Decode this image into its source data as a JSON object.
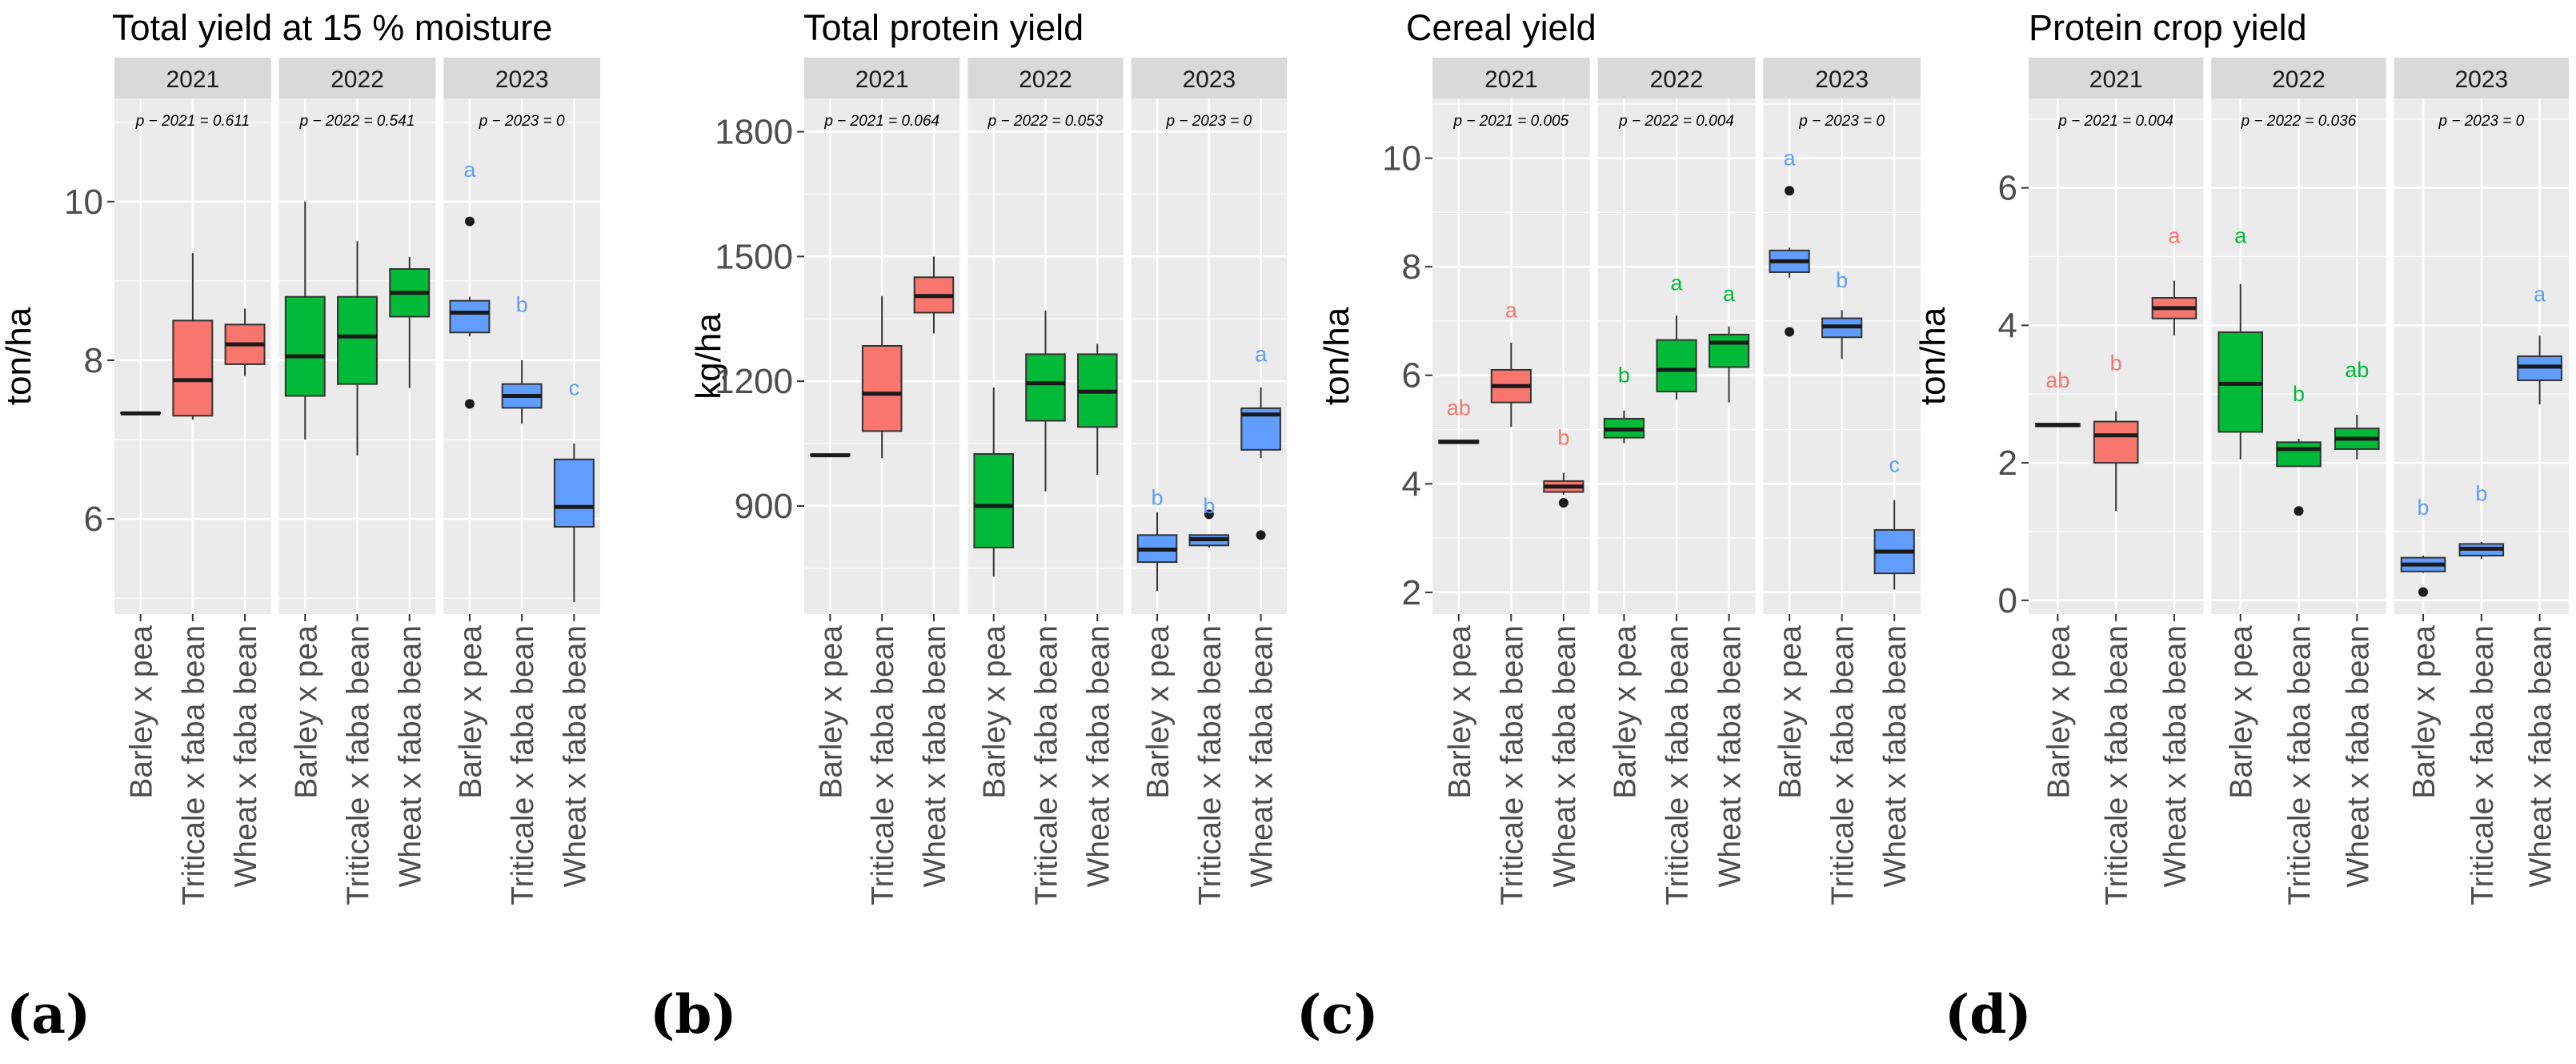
{
  "colors": {
    "red": "#F8766D",
    "green": "#00BA38",
    "blue": "#619CFF",
    "panel_bg": "#EBEBEB",
    "strip_bg": "#D9D9D9",
    "grid": "#FFFFFF"
  },
  "categories": [
    "Barley x pea",
    "Triticale x faba bean",
    "Wheat x faba bean"
  ],
  "years": [
    "2021",
    "2022",
    "2023"
  ],
  "chart_data": [
    {
      "id": "a",
      "type": "box",
      "panel_label": "(a)",
      "title": "Total yield at 15 % moisture",
      "ylabel": "ton/ha",
      "ylim": [
        4.8,
        11.3
      ],
      "yticks": [
        6,
        8,
        10
      ],
      "facets": [
        {
          "year": "2021",
          "ptext": "p − 2021 = 0.611",
          "boxes": [
            {
              "cat": 0,
              "color": "red",
              "min": 7.33,
              "q1": 7.33,
              "median": 7.33,
              "q3": 7.34,
              "max": 7.34,
              "outliers": [],
              "letter": ""
            },
            {
              "cat": 1,
              "color": "red",
              "min": 7.25,
              "q1": 7.3,
              "median": 7.75,
              "q3": 8.5,
              "max": 9.35,
              "outliers": [],
              "letter": ""
            },
            {
              "cat": 2,
              "color": "red",
              "min": 7.8,
              "q1": 7.95,
              "median": 8.2,
              "q3": 8.45,
              "max": 8.65,
              "outliers": [],
              "letter": ""
            }
          ]
        },
        {
          "year": "2022",
          "ptext": "p − 2022 = 0.541",
          "boxes": [
            {
              "cat": 0,
              "color": "green",
              "min": 7.0,
              "q1": 7.55,
              "median": 8.05,
              "q3": 8.8,
              "max": 10.0,
              "outliers": [],
              "letter": ""
            },
            {
              "cat": 1,
              "color": "green",
              "min": 6.8,
              "q1": 7.7,
              "median": 8.3,
              "q3": 8.8,
              "max": 9.5,
              "outliers": [],
              "letter": ""
            },
            {
              "cat": 2,
              "color": "green",
              "min": 7.65,
              "q1": 8.55,
              "median": 8.85,
              "q3": 9.15,
              "max": 9.3,
              "outliers": [],
              "letter": ""
            }
          ]
        },
        {
          "year": "2023",
          "ptext": "p − 2023 = 0",
          "boxes": [
            {
              "cat": 0,
              "color": "blue",
              "min": 8.3,
              "q1": 8.35,
              "median": 8.6,
              "q3": 8.75,
              "max": 8.8,
              "outliers": [
                9.75,
                7.45
              ],
              "letter": "a",
              "letter_y": 10.4
            },
            {
              "cat": 1,
              "color": "blue",
              "min": 7.2,
              "q1": 7.4,
              "median": 7.55,
              "q3": 7.7,
              "max": 8.0,
              "outliers": [],
              "letter": "b",
              "letter_y": 8.7
            },
            {
              "cat": 2,
              "color": "blue",
              "min": 4.95,
              "q1": 5.9,
              "median": 6.15,
              "q3": 6.75,
              "max": 6.95,
              "outliers": [],
              "letter": "c",
              "letter_y": 7.65
            }
          ]
        }
      ]
    },
    {
      "id": "b",
      "type": "box",
      "panel_label": "(b)",
      "title": "Total protein yield",
      "ylabel": "kg/ha",
      "ylim": [
        640,
        1880
      ],
      "yticks": [
        900,
        1200,
        1500,
        1800
      ],
      "facets": [
        {
          "year": "2021",
          "ptext": "p − 2021 = 0.064",
          "boxes": [
            {
              "cat": 0,
              "color": "red",
              "min": 1022,
              "q1": 1022,
              "median": 1022,
              "q3": 1024,
              "max": 1024,
              "outliers": [],
              "letter": ""
            },
            {
              "cat": 1,
              "color": "red",
              "min": 1015,
              "q1": 1080,
              "median": 1170,
              "q3": 1285,
              "max": 1405,
              "outliers": [],
              "letter": ""
            },
            {
              "cat": 2,
              "color": "red",
              "min": 1315,
              "q1": 1365,
              "median": 1405,
              "q3": 1450,
              "max": 1500,
              "outliers": [],
              "letter": ""
            }
          ]
        },
        {
          "year": "2022",
          "ptext": "p − 2022 = 0.053",
          "boxes": [
            {
              "cat": 0,
              "color": "green",
              "min": 730,
              "q1": 800,
              "median": 900,
              "q3": 1025,
              "max": 1185,
              "outliers": [],
              "letter": ""
            },
            {
              "cat": 1,
              "color": "green",
              "min": 935,
              "q1": 1105,
              "median": 1195,
              "q3": 1265,
              "max": 1370,
              "outliers": [],
              "letter": ""
            },
            {
              "cat": 2,
              "color": "green",
              "min": 975,
              "q1": 1090,
              "median": 1175,
              "q3": 1265,
              "max": 1290,
              "outliers": [],
              "letter": ""
            }
          ]
        },
        {
          "year": "2023",
          "ptext": "p − 2023 = 0",
          "boxes": [
            {
              "cat": 0,
              "color": "blue",
              "min": 695,
              "q1": 765,
              "median": 795,
              "q3": 830,
              "max": 885,
              "outliers": [],
              "letter": "b",
              "letter_y": 920
            },
            {
              "cat": 1,
              "color": "blue",
              "min": 800,
              "q1": 805,
              "median": 820,
              "q3": 830,
              "max": 830,
              "outliers": [
                880
              ],
              "letter": "b",
              "letter_y": 900
            },
            {
              "cat": 2,
              "color": "blue",
              "min": 1015,
              "q1": 1035,
              "median": 1120,
              "q3": 1135,
              "max": 1185,
              "outliers": [
                830
              ],
              "letter": "a",
              "letter_y": 1265
            }
          ]
        }
      ]
    },
    {
      "id": "c",
      "type": "box",
      "panel_label": "(c)",
      "title": "Cereal yield",
      "ylabel": "ton/ha",
      "ylim": [
        1.6,
        11.1
      ],
      "yticks": [
        2,
        4,
        6,
        8,
        10
      ],
      "facets": [
        {
          "year": "2021",
          "ptext": "p − 2021 = 0.005",
          "boxes": [
            {
              "cat": 0,
              "color": "red",
              "min": 4.75,
              "q1": 4.75,
              "median": 4.77,
              "q3": 4.8,
              "max": 4.8,
              "outliers": [],
              "letter": "ab",
              "letter_y": 5.4
            },
            {
              "cat": 1,
              "color": "red",
              "min": 5.05,
              "q1": 5.5,
              "median": 5.8,
              "q3": 6.1,
              "max": 6.6,
              "outliers": [],
              "letter": "a",
              "letter_y": 7.2
            },
            {
              "cat": 2,
              "color": "red",
              "min": 3.8,
              "q1": 3.85,
              "median": 3.95,
              "q3": 4.05,
              "max": 4.2,
              "outliers": [
                3.65
              ],
              "letter": "b",
              "letter_y": 4.85
            }
          ]
        },
        {
          "year": "2022",
          "ptext": "p − 2022 = 0.004",
          "boxes": [
            {
              "cat": 0,
              "color": "green",
              "min": 4.75,
              "q1": 4.85,
              "median": 5.0,
              "q3": 5.2,
              "max": 5.35,
              "outliers": [],
              "letter": "b",
              "letter_y": 6.0
            },
            {
              "cat": 1,
              "color": "green",
              "min": 5.55,
              "q1": 5.7,
              "median": 6.1,
              "q3": 6.65,
              "max": 7.1,
              "outliers": [],
              "letter": "a",
              "letter_y": 7.7
            },
            {
              "cat": 2,
              "color": "green",
              "min": 5.5,
              "q1": 6.15,
              "median": 6.6,
              "q3": 6.75,
              "max": 6.9,
              "outliers": [],
              "letter": "a",
              "letter_y": 7.5
            }
          ]
        },
        {
          "year": "2023",
          "ptext": "p − 2023 = 0",
          "boxes": [
            {
              "cat": 0,
              "color": "blue",
              "min": 7.8,
              "q1": 7.9,
              "median": 8.1,
              "q3": 8.3,
              "max": 8.35,
              "outliers": [
                9.4,
                6.8
              ],
              "letter": "a",
              "letter_y": 10.0
            },
            {
              "cat": 1,
              "color": "blue",
              "min": 6.3,
              "q1": 6.7,
              "median": 6.9,
              "q3": 7.05,
              "max": 7.2,
              "outliers": [],
              "letter": "b",
              "letter_y": 7.75
            },
            {
              "cat": 2,
              "color": "blue",
              "min": 2.05,
              "q1": 2.35,
              "median": 2.75,
              "q3": 3.15,
              "max": 3.7,
              "outliers": [],
              "letter": "c",
              "letter_y": 4.35
            }
          ]
        }
      ]
    },
    {
      "id": "d",
      "type": "box",
      "panel_label": "(d)",
      "title": "Protein crop yield",
      "ylabel": "ton/ha",
      "ylim": [
        -0.2,
        7.3
      ],
      "yticks": [
        0,
        2,
        4,
        6
      ],
      "facets": [
        {
          "year": "2021",
          "ptext": "p − 2021 = 0.004",
          "boxes": [
            {
              "cat": 0,
              "color": "red",
              "min": 2.53,
              "q1": 2.53,
              "median": 2.55,
              "q3": 2.57,
              "max": 2.57,
              "outliers": [],
              "letter": "ab",
              "letter_y": 3.2
            },
            {
              "cat": 1,
              "color": "red",
              "min": 1.3,
              "q1": 2.0,
              "median": 2.4,
              "q3": 2.6,
              "max": 2.75,
              "outliers": [],
              "letter": "b",
              "letter_y": 3.45
            },
            {
              "cat": 2,
              "color": "red",
              "min": 3.85,
              "q1": 4.1,
              "median": 4.25,
              "q3": 4.4,
              "max": 4.65,
              "outliers": [],
              "letter": "a",
              "letter_y": 5.3
            }
          ]
        },
        {
          "year": "2022",
          "ptext": "p − 2022 = 0.036",
          "boxes": [
            {
              "cat": 0,
              "color": "green",
              "min": 2.05,
              "q1": 2.45,
              "median": 3.15,
              "q3": 3.9,
              "max": 4.6,
              "outliers": [],
              "letter": "a",
              "letter_y": 5.3
            },
            {
              "cat": 1,
              "color": "green",
              "min": 1.95,
              "q1": 1.95,
              "median": 2.2,
              "q3": 2.3,
              "max": 2.35,
              "outliers": [
                1.3
              ],
              "letter": "b",
              "letter_y": 3.0
            },
            {
              "cat": 2,
              "color": "green",
              "min": 2.05,
              "q1": 2.2,
              "median": 2.35,
              "q3": 2.5,
              "max": 2.7,
              "outliers": [],
              "letter": "ab",
              "letter_y": 3.35
            }
          ]
        },
        {
          "year": "2023",
          "ptext": "p − 2023 = 0",
          "boxes": [
            {
              "cat": 0,
              "color": "blue",
              "min": 0.4,
              "q1": 0.42,
              "median": 0.52,
              "q3": 0.62,
              "max": 0.65,
              "outliers": [
                0.12
              ],
              "letter": "b",
              "letter_y": 1.35
            },
            {
              "cat": 1,
              "color": "blue",
              "min": 0.6,
              "q1": 0.65,
              "median": 0.75,
              "q3": 0.82,
              "max": 0.85,
              "outliers": [],
              "letter": "b",
              "letter_y": 1.55
            },
            {
              "cat": 2,
              "color": "blue",
              "min": 2.85,
              "q1": 3.2,
              "median": 3.4,
              "q3": 3.55,
              "max": 3.85,
              "outliers": [],
              "letter": "a",
              "letter_y": 4.45
            }
          ]
        }
      ]
    }
  ]
}
